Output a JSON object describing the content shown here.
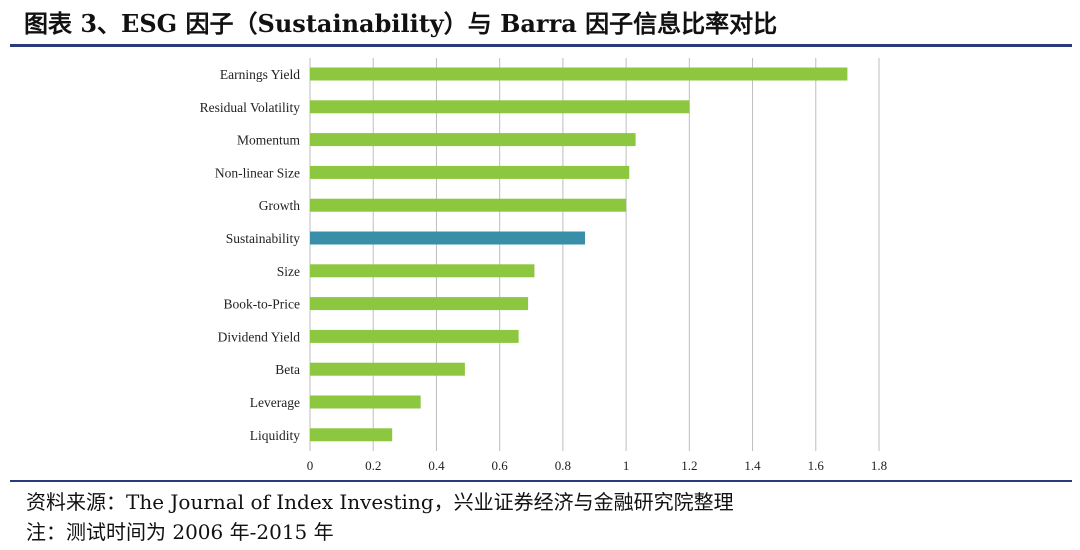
{
  "figure": {
    "title": "图表 3、ESG 因子（Sustainability）与 Barra 因子信息比率对比",
    "source": "资料来源：The Journal of Index Investing，兴业证券经济与金融研究院整理",
    "note": "注：测试时间为 2006 年-2015 年"
  },
  "colors": {
    "bar_default": "#8dc63f",
    "bar_highlight": "#3a8fa8",
    "grid": "#bdbdbd",
    "rule": "#2b3a7a",
    "text": "#222222"
  },
  "chart_data": {
    "type": "bar",
    "orientation": "horizontal",
    "categories": [
      "Earnings Yield",
      "Residual Volatility",
      "Momentum",
      "Non-linear Size",
      "Growth",
      "Sustainability",
      "Size",
      "Book-to-Price",
      "Dividend Yield",
      "Beta",
      "Leverage",
      "Liquidity"
    ],
    "values": [
      1.7,
      1.2,
      1.03,
      1.01,
      1.0,
      0.87,
      0.71,
      0.69,
      0.66,
      0.49,
      0.35,
      0.26
    ],
    "highlight": "Sustainability",
    "xlim": [
      0,
      1.8
    ],
    "xticks": [
      0,
      0.2,
      0.4,
      0.6,
      0.8,
      1,
      1.2,
      1.4,
      1.6,
      1.8
    ],
    "xtick_labels": [
      "0",
      "0.2",
      "0.4",
      "0.6",
      "0.8",
      "1",
      "1.2",
      "1.4",
      "1.6",
      "1.8"
    ],
    "grid": "vertical",
    "title": "",
    "xlabel": "",
    "ylabel": ""
  }
}
